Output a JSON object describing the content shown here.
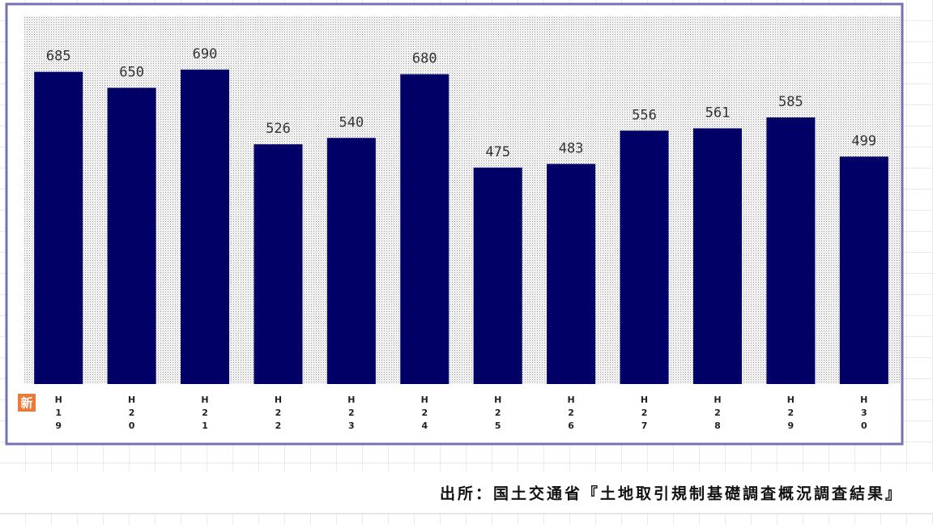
{
  "chart_data": {
    "type": "bar",
    "badge": "新",
    "categories": [
      "H19",
      "H20",
      "H21",
      "H22",
      "H23",
      "H24",
      "H25",
      "H26",
      "H27",
      "H28",
      "H29",
      "H30"
    ],
    "values": [
      685,
      650,
      690,
      526,
      540,
      680,
      475,
      483,
      556,
      561,
      585,
      499
    ],
    "color": "#000066",
    "ylim": [
      0,
      800
    ],
    "source": "出所：国土交通省『土地取引規制基礎調査概況調査結果』"
  }
}
